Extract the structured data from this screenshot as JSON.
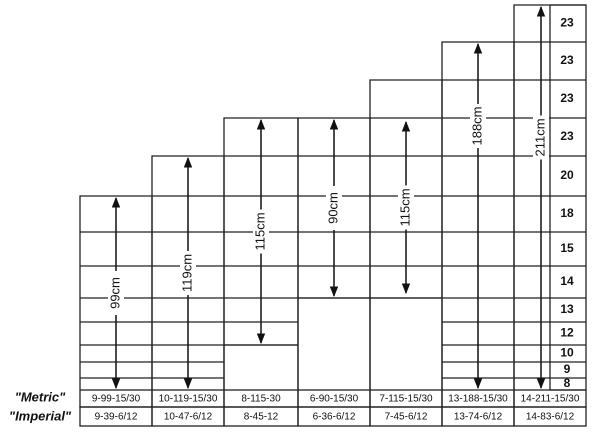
{
  "columns": [
    {
      "height": "99cm",
      "metric": "9-99-15/30",
      "imperial": "9-39-6/12"
    },
    {
      "height": "119cm",
      "metric": "10-119-15/30",
      "imperial": "10-47-6/12"
    },
    {
      "height": "115cm",
      "metric": "8-115-30",
      "imperial": "8-45-12"
    },
    {
      "height": "90cm",
      "metric": "6-90-15/30",
      "imperial": "6-36-6/12"
    },
    {
      "height": "115cm",
      "metric": "7-115-15/30",
      "imperial": "7-45-6/12"
    },
    {
      "height": "188cm",
      "metric": "13-188-15/30",
      "imperial": "13-74-6/12"
    },
    {
      "height": "211cm",
      "metric": "14-211-15/30",
      "imperial": "14-83-6/12"
    }
  ],
  "row_numbers": [
    "23",
    "23",
    "23",
    "23",
    "20",
    "18",
    "15",
    "14",
    "13",
    "12",
    "10",
    "9",
    "8"
  ],
  "row_labels": {
    "metric": "\"Metric\"",
    "imperial": "\"Imperial\""
  }
}
